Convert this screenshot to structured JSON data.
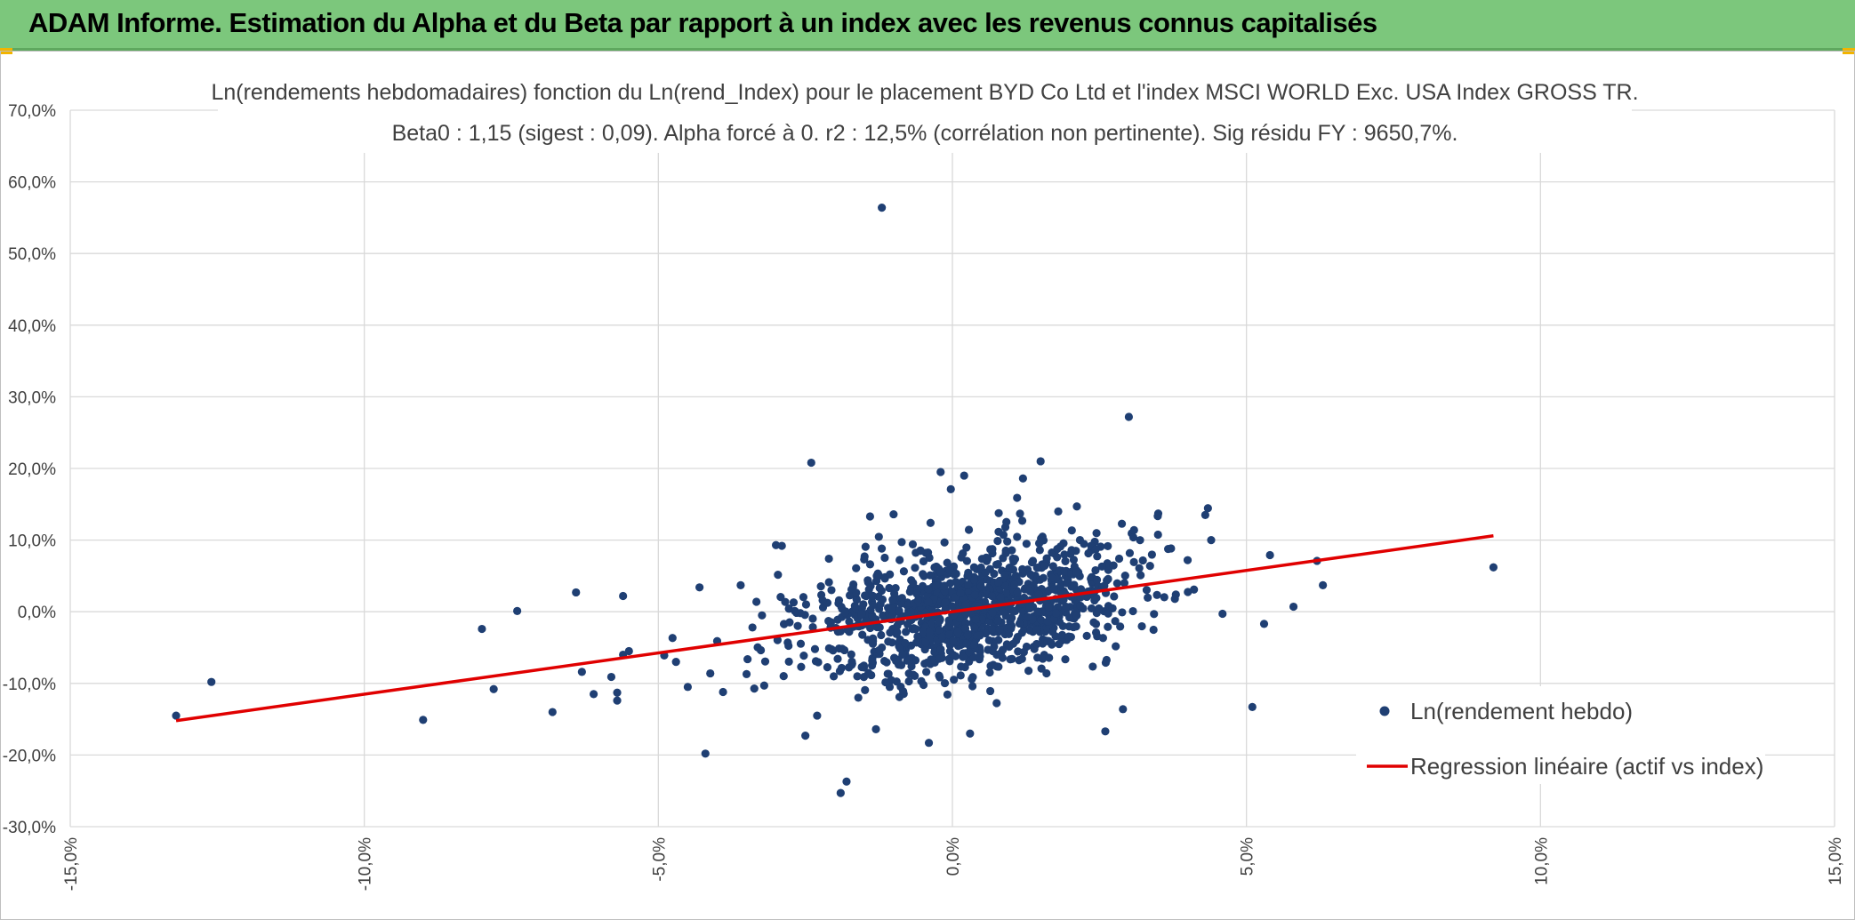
{
  "header": {
    "title": "ADAM Informe. Estimation du Alpha et du Beta par rapport à un index avec les revenus connus capitalisés"
  },
  "colors": {
    "header_bg": "#7cc77c",
    "accent_marks": "#f2b400",
    "points": "#1f3f73",
    "regression": "#e00000",
    "grid": "#d9d9d9",
    "text": "#404040"
  },
  "chart_data": {
    "type": "scatter",
    "title_lines": [
      "Ln(rendements hebdomadaires) fonction du Ln(rend_Index) pour le placement BYD Co Ltd et l'index MSCI WORLD Exc. USA Index GROSS TR.",
      "Beta0 : 1,15 (sigest : 0,09). Alpha forcé à 0. r2 : 12,5% (corrélation non pertinente). Sig résidu FY : 9650,7%."
    ],
    "xlabel": "",
    "ylabel": "",
    "xlim": [
      -15,
      15
    ],
    "ylim": [
      -30,
      70
    ],
    "x_ticks": [
      -15,
      -10,
      -5,
      0,
      5,
      10,
      15
    ],
    "y_ticks": [
      -30,
      -20,
      -10,
      0,
      10,
      20,
      30,
      40,
      50,
      60,
      70
    ],
    "x_tick_labels": [
      "-15,0%",
      "-10,0%",
      "-5,0%",
      "0,0%",
      "5,0%",
      "10,0%",
      "15,0%"
    ],
    "y_tick_labels": [
      "-30,0%",
      "-20,0%",
      "-10,0%",
      "0,0%",
      "10,0%",
      "20,0%",
      "30,0%",
      "40,0%",
      "50,0%",
      "60,0%",
      "70,0%"
    ],
    "grid": true,
    "legend_position": "bottom-right",
    "series": [
      {
        "name": "Ln(rendement hebdo)",
        "kind": "scatter",
        "x": [
          -13.2,
          -12.6,
          -9.0,
          -8.0,
          -7.4,
          -7.8,
          -6.8,
          -6.4,
          -6.3,
          -6.1,
          -5.8,
          -5.7,
          -5.7,
          -5.6,
          -5.6,
          -5.5,
          -4.9,
          -4.7,
          -4.5,
          -4.3,
          -4.2,
          -4.0,
          -3.9,
          -3.6,
          -3.5,
          -3.4,
          -3.2,
          -3.0,
          -2.9,
          -2.8,
          -2.7,
          -2.5,
          -2.4,
          -2.3,
          -2.2,
          -2.1,
          -1.9,
          -1.8,
          -1.6,
          -1.5,
          -1.4,
          -1.3,
          -1.2,
          -1.2,
          -1.0,
          -0.9,
          -0.5,
          -0.4,
          -0.3,
          0.2,
          0.3,
          0.6,
          1.2,
          1.5,
          1.8,
          2.1,
          2.6,
          2.9,
          3.0,
          3.2,
          3.5,
          3.8,
          4.0,
          4.3,
          4.4,
          5.1,
          5.3,
          5.4,
          5.8,
          6.2,
          6.3,
          9.2,
          -0.2,
          -0.4,
          -0.7,
          0.9,
          1.1,
          1.6,
          1.9
        ],
        "y": [
          -14.5,
          -9.8,
          -15.1,
          -2.4,
          0.1,
          -10.8,
          -14.0,
          2.7,
          -8.4,
          -11.5,
          -9.1,
          -11.3,
          -12.4,
          2.2,
          -6.0,
          -5.5,
          -6.1,
          -7.0,
          -10.5,
          3.4,
          -19.8,
          -4.1,
          -11.2,
          3.7,
          -8.7,
          -2.2,
          -10.3,
          9.3,
          9.2,
          -4.3,
          1.3,
          -17.3,
          20.8,
          -14.5,
          0.6,
          7.4,
          -25.3,
          -23.7,
          -12.0,
          7.3,
          13.3,
          -16.4,
          56.4,
          -5.0,
          13.6,
          -11.9,
          1.5,
          -18.3,
          -7.1,
          19.0,
          -17.0,
          7.4,
          18.6,
          21.0,
          14.0,
          8.5,
          -16.7,
          -13.6,
          27.2,
          5.1,
          13.7,
          2.4,
          7.2,
          13.5,
          10.0,
          -13.3,
          -1.7,
          7.9,
          0.7,
          7.1,
          3.7,
          6.2,
          19.5,
          -2.0,
          4.4,
          11.8,
          15.9,
          -8.6,
          2.2
        ]
      },
      {
        "name": "Regression linéaire (actif vs index)",
        "kind": "line",
        "x": [
          -13.2,
          9.2
        ],
        "y": [
          -15.2,
          10.6
        ]
      }
    ]
  }
}
